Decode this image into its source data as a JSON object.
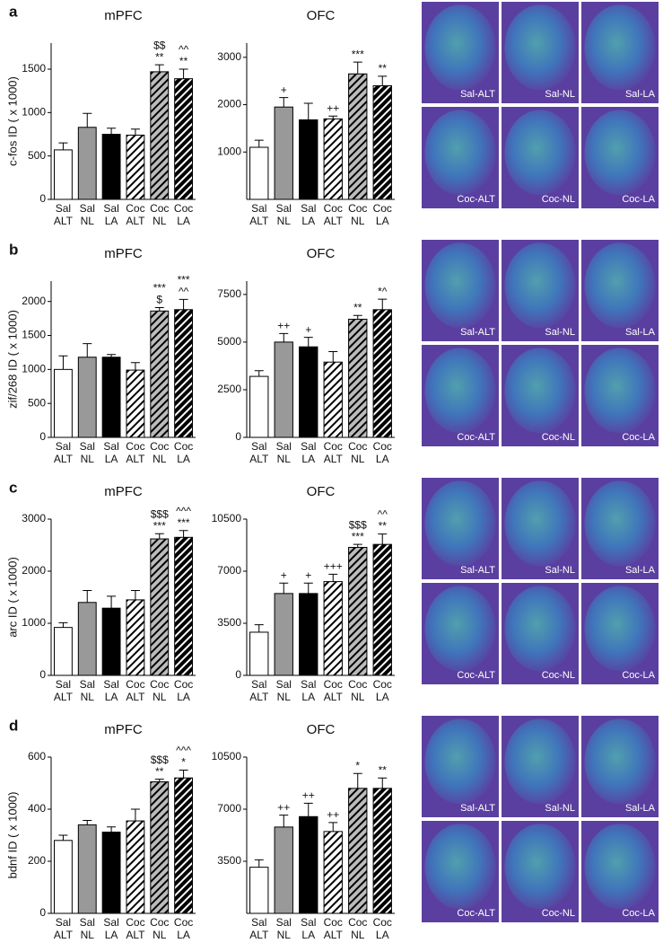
{
  "chart_data": [
    {
      "type": "bar",
      "title": "mPFC",
      "ylabel": "c-fos ID ( x 1000)",
      "categories": [
        [
          "Sal",
          "ALT"
        ],
        [
          "Sal",
          "NL"
        ],
        [
          "Sal",
          "LA"
        ],
        [
          "Coc",
          "ALT"
        ],
        [
          "Coc",
          "NL"
        ],
        [
          "Coc",
          "LA"
        ]
      ],
      "values": [
        570,
        830,
        750,
        740,
        1470,
        1390
      ],
      "errors": [
        80,
        160,
        70,
        70,
        80,
        110
      ],
      "annotations": [
        [],
        [],
        [],
        [],
        [
          "$$",
          "**"
        ],
        [
          "^^",
          "**"
        ]
      ],
      "fills": [
        "#ffffff",
        "#999999",
        "#000000",
        "#ffffff",
        "#bbbbbb",
        "#000000"
      ],
      "hatched": [
        false,
        false,
        false,
        true,
        true,
        true
      ],
      "ylim": [
        0,
        1800
      ],
      "yticks": [
        0,
        500,
        1000,
        1500
      ]
    },
    {
      "type": "bar",
      "title": "OFC",
      "categories": [
        [
          "Sal",
          "ALT"
        ],
        [
          "Sal",
          "NL"
        ],
        [
          "Sal",
          "LA"
        ],
        [
          "Coc",
          "ALT"
        ],
        [
          "Coc",
          "NL"
        ],
        [
          "Coc",
          "LA"
        ]
      ],
      "values": [
        1100,
        1950,
        1680,
        1700,
        2650,
        2400
      ],
      "errors": [
        150,
        200,
        350,
        60,
        250,
        200
      ],
      "annotations": [
        [],
        [
          "+"
        ],
        [],
        [
          "++"
        ],
        [
          "***"
        ],
        [
          "**"
        ]
      ],
      "fills": [
        "#ffffff",
        "#999999",
        "#000000",
        "#ffffff",
        "#bbbbbb",
        "#000000"
      ],
      "hatched": [
        false,
        false,
        false,
        true,
        true,
        true
      ],
      "ylim": [
        0,
        3300
      ],
      "yticks": [
        1000,
        2000,
        3000
      ]
    },
    {
      "type": "bar",
      "title": "mPFC",
      "ylabel": "zif/268 ID ( x 1000)",
      "categories": [
        [
          "Sal",
          "ALT"
        ],
        [
          "Sal",
          "NL"
        ],
        [
          "Sal",
          "LA"
        ],
        [
          "Coc",
          "ALT"
        ],
        [
          "Coc",
          "NL"
        ],
        [
          "Coc",
          "LA"
        ]
      ],
      "values": [
        1000,
        1180,
        1180,
        990,
        1860,
        1880
      ],
      "errors": [
        200,
        200,
        40,
        110,
        50,
        150
      ],
      "annotations": [
        [],
        [],
        [],
        [],
        [
          "***",
          "$"
        ],
        [
          "***",
          "^^"
        ]
      ],
      "fills": [
        "#ffffff",
        "#999999",
        "#000000",
        "#ffffff",
        "#bbbbbb",
        "#000000"
      ],
      "hatched": [
        false,
        false,
        false,
        true,
        true,
        true
      ],
      "ylim": [
        0,
        2300
      ],
      "yticks": [
        0,
        500,
        1000,
        1500,
        2000
      ]
    },
    {
      "type": "bar",
      "title": "OFC",
      "categories": [
        [
          "Sal",
          "ALT"
        ],
        [
          "Sal",
          "NL"
        ],
        [
          "Sal",
          "LA"
        ],
        [
          "Coc",
          "ALT"
        ],
        [
          "Coc",
          "NL"
        ],
        [
          "Coc",
          "LA"
        ]
      ],
      "values": [
        3200,
        5000,
        4750,
        3950,
        6200,
        6700
      ],
      "errors": [
        300,
        450,
        500,
        550,
        200,
        550
      ],
      "annotations": [
        [],
        [
          "++"
        ],
        [
          "+"
        ],
        [],
        [
          "**"
        ],
        [
          "*^"
        ]
      ],
      "fills": [
        "#ffffff",
        "#999999",
        "#000000",
        "#ffffff",
        "#bbbbbb",
        "#000000"
      ],
      "hatched": [
        false,
        false,
        false,
        true,
        true,
        true
      ],
      "ylim": [
        0,
        8200
      ],
      "yticks": [
        0,
        2500,
        5000,
        7500
      ]
    },
    {
      "type": "bar",
      "title": "mPFC",
      "ylabel": "arc ID ( x 1000)",
      "categories": [
        [
          "Sal",
          "ALT"
        ],
        [
          "Sal",
          "NL"
        ],
        [
          "Sal",
          "LA"
        ],
        [
          "Coc",
          "ALT"
        ],
        [
          "Coc",
          "NL"
        ],
        [
          "Coc",
          "LA"
        ]
      ],
      "values": [
        920,
        1400,
        1290,
        1450,
        2620,
        2650
      ],
      "errors": [
        90,
        230,
        230,
        180,
        100,
        130
      ],
      "annotations": [
        [],
        [],
        [],
        [],
        [
          "$$$",
          "***"
        ],
        [
          "^^^",
          "***"
        ]
      ],
      "fills": [
        "#ffffff",
        "#999999",
        "#000000",
        "#ffffff",
        "#bbbbbb",
        "#000000"
      ],
      "hatched": [
        false,
        false,
        false,
        true,
        true,
        true
      ],
      "ylim": [
        0,
        3000
      ],
      "yticks": [
        0,
        1000,
        2000,
        3000
      ]
    },
    {
      "type": "bar",
      "title": "OFC",
      "categories": [
        [
          "Sal",
          "ALT"
        ],
        [
          "Sal",
          "NL"
        ],
        [
          "Sal",
          "LA"
        ],
        [
          "Coc",
          "ALT"
        ],
        [
          "Coc",
          "NL"
        ],
        [
          "Coc",
          "LA"
        ]
      ],
      "values": [
        2900,
        5500,
        5500,
        6300,
        8600,
        8800
      ],
      "errors": [
        500,
        700,
        700,
        500,
        200,
        700
      ],
      "annotations": [
        [],
        [
          "+"
        ],
        [
          "+"
        ],
        [
          "+++"
        ],
        [
          "$$$",
          "***"
        ],
        [
          "^^",
          "**"
        ]
      ],
      "fills": [
        "#ffffff",
        "#999999",
        "#000000",
        "#ffffff",
        "#bbbbbb",
        "#000000"
      ],
      "hatched": [
        false,
        false,
        false,
        true,
        true,
        true
      ],
      "ylim": [
        0,
        10500
      ],
      "yticks": [
        0,
        3500,
        7000,
        10500
      ]
    },
    {
      "type": "bar",
      "title": "mPFC",
      "ylabel": "bdnf ID ( x 1000)",
      "categories": [
        [
          "Sal",
          "ALT"
        ],
        [
          "Sal",
          "NL"
        ],
        [
          "Sal",
          "LA"
        ],
        [
          "Coc",
          "ALT"
        ],
        [
          "Coc",
          "NL"
        ],
        [
          "Coc",
          "LA"
        ]
      ],
      "values": [
        280,
        340,
        312,
        355,
        505,
        520
      ],
      "errors": [
        20,
        17,
        20,
        45,
        10,
        30
      ],
      "annotations": [
        [],
        [],
        [],
        [],
        [
          "$$$",
          "**"
        ],
        [
          "^^^",
          "*"
        ]
      ],
      "fills": [
        "#ffffff",
        "#999999",
        "#000000",
        "#ffffff",
        "#bbbbbb",
        "#000000"
      ],
      "hatched": [
        false,
        false,
        false,
        true,
        true,
        true
      ],
      "ylim": [
        0,
        600
      ],
      "yticks": [
        0,
        200,
        400,
        600
      ]
    },
    {
      "type": "bar",
      "title": "OFC",
      "categories": [
        [
          "Sal",
          "ALT"
        ],
        [
          "Sal",
          "NL"
        ],
        [
          "Sal",
          "LA"
        ],
        [
          "Coc",
          "ALT"
        ],
        [
          "Coc",
          "NL"
        ],
        [
          "Coc",
          "LA"
        ]
      ],
      "values": [
        3100,
        5800,
        6500,
        5500,
        8400,
        8400
      ],
      "errors": [
        500,
        800,
        900,
        600,
        1000,
        700
      ],
      "annotations": [
        [],
        [
          "++"
        ],
        [
          "++"
        ],
        [
          "++"
        ],
        [
          "*"
        ],
        [
          "**"
        ]
      ],
      "fills": [
        "#ffffff",
        "#999999",
        "#000000",
        "#ffffff",
        "#bbbbbb",
        "#000000"
      ],
      "hatched": [
        false,
        false,
        false,
        true,
        true,
        true
      ],
      "ylim": [
        0,
        10500
      ],
      "yticks": [
        3500,
        7000,
        10500
      ]
    }
  ],
  "figure": {
    "panels": [
      {
        "label": "a",
        "images": [
          "Sal-ALT",
          "Sal-NL",
          "Sal-LA",
          "Coc-ALT",
          "Coc-NL",
          "Coc-LA"
        ]
      },
      {
        "label": "b",
        "images": [
          "Sal-ALT",
          "Sal-NL",
          "Sal-LA",
          "Coc-ALT",
          "Coc-NL",
          "Coc-LA"
        ]
      },
      {
        "label": "c",
        "images": [
          "Sal-ALT",
          "Sal-NL",
          "Sal-LA",
          "Coc-ALT",
          "Coc-NL",
          "Coc-LA"
        ]
      },
      {
        "label": "d",
        "images": [
          "Sal-ALT",
          "Sal-NL",
          "Sal-LA",
          "Coc-ALT",
          "Coc-NL",
          "Coc-LA"
        ]
      }
    ]
  }
}
